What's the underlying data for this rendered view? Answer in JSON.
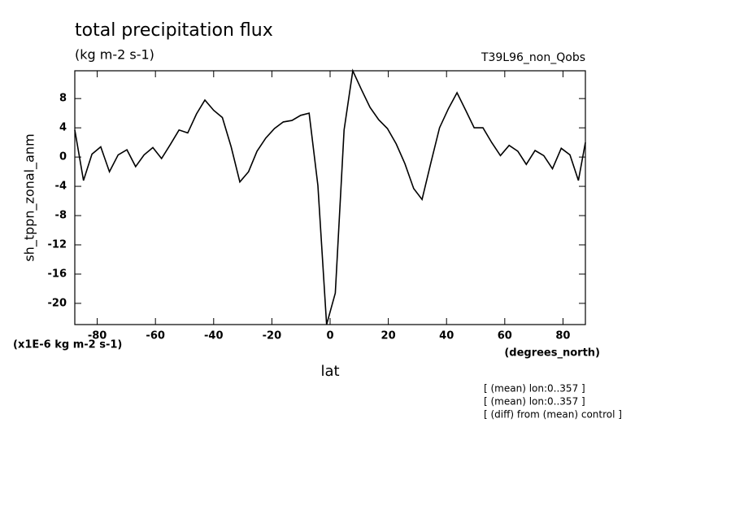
{
  "chart_data": {
    "type": "line",
    "title": "total precipitation flux",
    "subtitle": "(kg m-2 s-1)",
    "run_label": "T39L96_non_Qobs",
    "y_label": "sh_tppn_zonal_anm",
    "y_units": "(x1E-6 kg m-2 s-1)",
    "x_units": "(degrees_north)",
    "x_label": "lat",
    "notes": [
      "[ (mean) lon:0..357 ]",
      "[ (mean) lon:0..357 ]",
      "[ (diff) from (mean) control ]"
    ],
    "x": [
      -87.7,
      -84.7,
      -81.8,
      -78.8,
      -75.8,
      -72.8,
      -69.8,
      -66.8,
      -63.9,
      -60.9,
      -57.9,
      -54.9,
      -51.9,
      -48.9,
      -45.9,
      -43.0,
      -40.0,
      -37.0,
      -34.0,
      -31.0,
      -28.0,
      -25.1,
      -22.1,
      -19.1,
      -16.1,
      -13.1,
      -10.1,
      -7.2,
      -4.2,
      -1.2,
      1.8,
      4.8,
      7.8,
      10.8,
      13.7,
      16.7,
      19.7,
      22.7,
      25.7,
      28.7,
      31.6,
      34.6,
      37.6,
      40.6,
      43.6,
      46.6,
      49.5,
      52.5,
      55.5,
      58.5,
      61.5,
      64.5,
      67.4,
      70.4,
      73.4,
      76.4,
      79.4,
      82.4,
      85.3,
      87.7
    ],
    "series": [
      {
        "color": "#000000",
        "values": [
          3.7,
          -3.2,
          0.4,
          1.4,
          -2.0,
          0.3,
          1.0,
          -1.3,
          0.3,
          1.3,
          -0.2,
          1.7,
          3.7,
          3.3,
          5.9,
          7.8,
          6.4,
          5.4,
          1.4,
          -3.4,
          -2.0,
          0.8,
          2.6,
          3.9,
          4.8,
          5.0,
          5.7,
          6.0,
          -3.9,
          -22.9,
          -18.6,
          3.7,
          11.8,
          9.2,
          6.8,
          5.1,
          3.9,
          1.8,
          -0.9,
          -4.3,
          -5.8,
          -0.8,
          4.0,
          6.6,
          8.8,
          6.4,
          4.0,
          4.0,
          2.0,
          0.2,
          1.6,
          0.8,
          -1.0,
          0.9,
          0.2,
          -1.6,
          1.2,
          0.3,
          -3.2,
          2.0
        ]
      }
    ],
    "xlim": [
      -87.7,
      87.7
    ],
    "ylim": [
      -22.9,
      11.8
    ],
    "xticks": [
      -80,
      -60,
      -40,
      -20,
      0,
      20,
      40,
      60,
      80
    ],
    "yticks": [
      -20,
      -16,
      -12,
      -8,
      -4,
      0,
      4,
      8
    ]
  }
}
